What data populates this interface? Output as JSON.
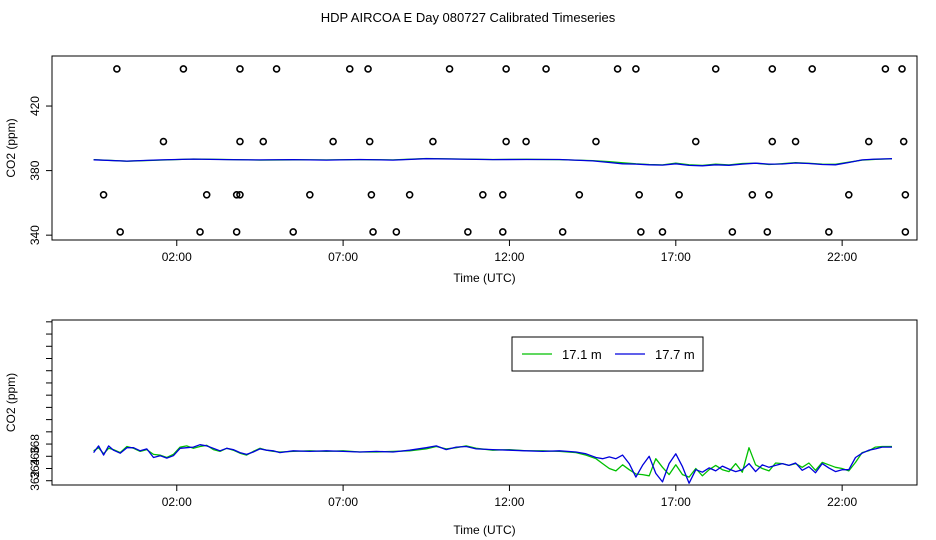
{
  "figure": {
    "title": "HDP AIRCOA E  Day 080727  Calibrated Timeseries"
  },
  "colors": {
    "green": "#00c000",
    "blue": "#0000dd",
    "black": "#000000"
  },
  "chart_data": [
    {
      "type": "scatter",
      "xlabel": "Time (UTC)",
      "ylabel": "CO2 (ppm)",
      "xlim": [
        -1.75,
        24.25
      ],
      "ylim": [
        337,
        451
      ],
      "xticks": [
        2,
        7,
        12,
        17,
        22
      ],
      "xtick_labels": [
        "02:00",
        "07:00",
        "12:00",
        "17:00",
        "22:00"
      ],
      "yticks": [
        340,
        380,
        420
      ],
      "ytick_labels": [
        "340",
        "380",
        "420"
      ],
      "grid": false,
      "legend": null,
      "series": [
        {
          "color": "green",
          "kind": "line",
          "x": [
            -0.5,
            0.5,
            1.5,
            2.5,
            3.5,
            4.5,
            5.5,
            6.5,
            7.5,
            8.5,
            9.5,
            10.5,
            11.5,
            12.5,
            13.5,
            14.5,
            15.0,
            15.4,
            15.8,
            16.2,
            16.6,
            17.0,
            17.4,
            17.8,
            18.2,
            18.6,
            19.0,
            19.4,
            19.8,
            20.2,
            20.6,
            21.0,
            21.4,
            21.8,
            22.2,
            22.6,
            23.0,
            23.5
          ],
          "y": [
            386.8,
            385.8,
            386.5,
            387.2,
            386.9,
            386.5,
            386.7,
            386.6,
            386.8,
            386.6,
            387.5,
            387.2,
            386.9,
            387.0,
            386.8,
            386.2,
            385.5,
            384.8,
            384.2,
            383.8,
            383.5,
            384.6,
            383.6,
            383.2,
            384.0,
            383.5,
            384.4,
            384.6,
            383.8,
            384.3,
            384.9,
            384.5,
            384.0,
            383.9,
            385.2,
            386.5,
            387.0,
            387.3
          ]
        },
        {
          "color": "blue",
          "kind": "line",
          "x": [
            -0.5,
            0.5,
            1.5,
            2.5,
            3.5,
            4.5,
            5.5,
            6.5,
            7.5,
            8.5,
            9.5,
            10.5,
            11.5,
            12.5,
            13.5,
            14.5,
            15.0,
            15.4,
            15.8,
            16.2,
            16.6,
            17.0,
            17.4,
            17.8,
            18.2,
            18.6,
            19.0,
            19.4,
            19.8,
            20.2,
            20.6,
            21.0,
            21.4,
            21.8,
            22.2,
            22.6,
            23.0,
            23.5
          ],
          "y": [
            386.7,
            385.9,
            386.6,
            387.1,
            386.8,
            386.6,
            386.8,
            386.5,
            386.9,
            386.5,
            387.4,
            387.1,
            386.8,
            386.9,
            386.9,
            386.0,
            385.0,
            384.2,
            384.0,
            383.6,
            383.4,
            384.2,
            383.2,
            383.0,
            383.6,
            383.3,
            384.0,
            384.6,
            384.0,
            384.1,
            384.7,
            384.4,
            383.8,
            383.6,
            385.0,
            386.6,
            387.1,
            387.4
          ]
        },
        {
          "color": "black",
          "kind": "points",
          "x": [
            0.2,
            2.2,
            3.9,
            5.0,
            7.2,
            7.75,
            10.2,
            11.9,
            13.1,
            15.25,
            15.8,
            18.2,
            19.9,
            21.1,
            23.3,
            23.8,
            1.6,
            3.9,
            4.6,
            6.7,
            7.8,
            9.7,
            11.9,
            12.5,
            14.6,
            17.6,
            19.9,
            20.6,
            22.8,
            23.85,
            -0.2,
            2.9,
            3.8,
            3.9,
            6.0,
            7.85,
            9.0,
            11.2,
            11.8,
            14.1,
            15.9,
            17.1,
            19.3,
            19.8,
            22.2,
            23.9,
            0.3,
            2.7,
            3.8,
            5.5,
            7.9,
            8.6,
            10.75,
            11.8,
            13.6,
            15.95,
            16.6,
            18.7,
            19.75,
            21.6,
            23.9
          ],
          "y": [
            443,
            443,
            443,
            443,
            443,
            443,
            443,
            443,
            443,
            443,
            443,
            443,
            443,
            443,
            443,
            443,
            398,
            398,
            398,
            398,
            398,
            398,
            398,
            398,
            398,
            398,
            398,
            398,
            398,
            398,
            365,
            365,
            365,
            365,
            365,
            365,
            365,
            365,
            365,
            365,
            365,
            365,
            365,
            365,
            365,
            365,
            342,
            342,
            342,
            342,
            342,
            342,
            342,
            342,
            342,
            342,
            342,
            342,
            342,
            342,
            342
          ]
        }
      ]
    },
    {
      "type": "line",
      "xlabel": "Time (UTC)",
      "ylabel": "CO2 (ppm)",
      "xlim": [
        -1.75,
        24.25
      ],
      "ylim": [
        361.3,
        388.3
      ],
      "xticks": [
        2,
        7,
        12,
        17,
        22
      ],
      "xtick_labels": [
        "02:00",
        "07:00",
        "12:00",
        "17:00",
        "22:00"
      ],
      "yticks": [
        362,
        364,
        366,
        368,
        370,
        372,
        374,
        376,
        378,
        380,
        382,
        384,
        386,
        388
      ],
      "ytick_labels": [
        "362",
        "364",
        "366",
        "368",
        "",
        "",
        "",
        "",
        "",
        "",
        "",
        "",
        "",
        ""
      ],
      "grid": false,
      "legend": "top-right",
      "series": [
        {
          "name": "17.1 m",
          "color": "green",
          "x": [
            -0.5,
            -0.35,
            -0.2,
            -0.05,
            0.1,
            0.3,
            0.5,
            0.7,
            0.9,
            1.1,
            1.3,
            1.5,
            1.7,
            1.9,
            2.1,
            2.3,
            2.5,
            2.7,
            2.9,
            3.1,
            3.3,
            3.5,
            3.7,
            3.9,
            4.1,
            4.3,
            4.5,
            4.7,
            4.9,
            5.1,
            5.5,
            6.0,
            6.5,
            7.0,
            7.5,
            8.0,
            8.5,
            9.0,
            9.5,
            9.8,
            10.1,
            10.4,
            10.7,
            11.0,
            11.5,
            12.0,
            12.5,
            13.0,
            13.5,
            14.0,
            14.3,
            14.6,
            14.8,
            15.0,
            15.2,
            15.4,
            15.6,
            15.8,
            16.0,
            16.2,
            16.4,
            16.6,
            16.8,
            17.0,
            17.2,
            17.4,
            17.6,
            17.8,
            18.0,
            18.2,
            18.4,
            18.6,
            18.8,
            19.0,
            19.2,
            19.4,
            19.6,
            19.8,
            20.0,
            20.2,
            20.4,
            20.6,
            20.8,
            21.0,
            21.2,
            21.4,
            21.6,
            21.8,
            22.0,
            22.2,
            22.4,
            22.6,
            22.8,
            23.0,
            23.2,
            23.5
          ],
          "y": [
            366.9,
            367.4,
            366.4,
            367.3,
            367.1,
            366.6,
            367.6,
            367.3,
            366.8,
            367.1,
            366.3,
            366.2,
            365.8,
            366.3,
            367.5,
            367.7,
            367.3,
            367.6,
            367.8,
            367.1,
            366.8,
            367.3,
            367.0,
            366.5,
            366.2,
            366.8,
            367.3,
            367.0,
            366.8,
            366.7,
            366.8,
            366.9,
            366.8,
            366.9,
            366.7,
            366.7,
            366.8,
            366.9,
            367.2,
            367.6,
            367.2,
            367.4,
            367.7,
            367.3,
            367.0,
            367.1,
            366.9,
            366.9,
            366.8,
            366.6,
            366.2,
            365.6,
            364.8,
            364.0,
            363.6,
            364.6,
            363.8,
            363.1,
            363.0,
            362.8,
            365.6,
            364.2,
            363.0,
            364.6,
            363.0,
            362.6,
            364.0,
            362.8,
            363.8,
            364.5,
            363.8,
            363.5,
            364.8,
            363.4,
            367.4,
            364.6,
            364.0,
            363.6,
            364.9,
            364.8,
            364.5,
            364.8,
            364.2,
            364.9,
            363.7,
            365.0,
            364.6,
            364.2,
            364.0,
            363.6,
            365.0,
            366.6,
            366.9,
            367.5,
            367.6,
            367.6
          ]
        },
        {
          "name": "17.7 m",
          "color": "blue",
          "x": [
            -0.5,
            -0.35,
            -0.2,
            -0.05,
            0.1,
            0.3,
            0.5,
            0.7,
            0.9,
            1.1,
            1.3,
            1.5,
            1.7,
            1.9,
            2.1,
            2.3,
            2.5,
            2.7,
            2.9,
            3.1,
            3.3,
            3.5,
            3.7,
            3.9,
            4.1,
            4.3,
            4.5,
            4.7,
            4.9,
            5.1,
            5.5,
            6.0,
            6.5,
            7.0,
            7.5,
            8.0,
            8.5,
            9.0,
            9.5,
            9.8,
            10.1,
            10.4,
            10.7,
            11.0,
            11.5,
            12.0,
            12.5,
            13.0,
            13.5,
            14.0,
            14.3,
            14.6,
            14.8,
            15.0,
            15.2,
            15.4,
            15.6,
            15.8,
            16.0,
            16.2,
            16.4,
            16.6,
            16.8,
            17.0,
            17.2,
            17.4,
            17.6,
            17.8,
            18.0,
            18.2,
            18.4,
            18.6,
            18.8,
            19.0,
            19.2,
            19.4,
            19.6,
            19.8,
            20.0,
            20.2,
            20.4,
            20.6,
            20.8,
            21.0,
            21.2,
            21.4,
            21.6,
            21.8,
            22.0,
            22.2,
            22.4,
            22.6,
            22.8,
            23.0,
            23.2,
            23.5
          ],
          "y": [
            366.6,
            367.7,
            366.2,
            367.7,
            367.0,
            366.5,
            367.4,
            367.4,
            366.9,
            367.2,
            365.8,
            366.1,
            365.7,
            366.1,
            367.3,
            367.4,
            367.5,
            367.9,
            367.7,
            367.3,
            366.9,
            367.3,
            367.1,
            366.6,
            366.3,
            366.7,
            367.2,
            367.0,
            366.9,
            366.6,
            366.9,
            366.8,
            366.9,
            366.8,
            366.7,
            366.8,
            366.7,
            367.0,
            367.4,
            367.7,
            367.1,
            367.5,
            367.6,
            367.2,
            367.1,
            367.0,
            366.9,
            366.8,
            366.9,
            366.7,
            366.4,
            365.8,
            365.6,
            365.9,
            365.6,
            366.2,
            364.8,
            362.6,
            364.5,
            366.0,
            363.2,
            361.8,
            364.8,
            366.4,
            364.3,
            361.6,
            363.8,
            363.4,
            364.1,
            363.6,
            364.4,
            363.9,
            363.5,
            363.8,
            364.8,
            363.5,
            364.6,
            364.2,
            364.5,
            364.8,
            364.5,
            364.9,
            363.7,
            364.3,
            363.3,
            364.8,
            364.1,
            363.5,
            363.8,
            363.8,
            365.8,
            366.5,
            367.0,
            367.2,
            367.5,
            367.5
          ]
        }
      ]
    }
  ]
}
